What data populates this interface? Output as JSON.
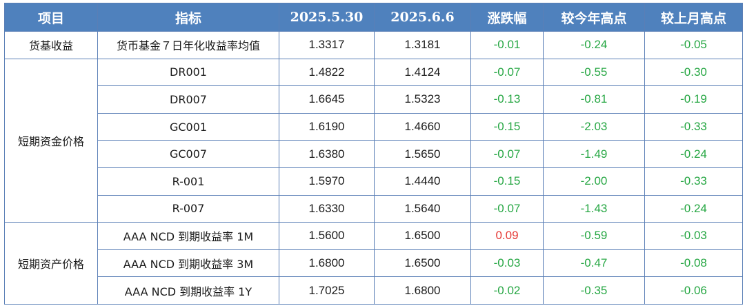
{
  "colors": {
    "header_bg": "#4f81bd",
    "header_text": "#ffffff",
    "border": "#5a7fb6",
    "up_color": "#e53935",
    "down_color": "#27a744"
  },
  "table": {
    "headers": [
      "项目",
      "指标",
      "2025.5.30",
      "2025.6.6",
      "涨跌幅",
      "较今年高点",
      "较上月高点"
    ],
    "groups": [
      {
        "category": "货基收益",
        "rows": [
          {
            "indicator": "货币基金７日年化收益率均值",
            "v1": "1.3317",
            "v2": "1.3181",
            "change": "-0.01",
            "vs_year_high": "-0.24",
            "vs_month_high": "-0.05"
          }
        ]
      },
      {
        "category": "短期资金价格",
        "rows": [
          {
            "indicator": "DR001",
            "v1": "1.4822",
            "v2": "1.4124",
            "change": "-0.07",
            "vs_year_high": "-0.55",
            "vs_month_high": "-0.30"
          },
          {
            "indicator": "DR007",
            "v1": "1.6645",
            "v2": "1.5323",
            "change": "-0.13",
            "vs_year_high": "-0.81",
            "vs_month_high": "-0.19"
          },
          {
            "indicator": "GC001",
            "v1": "1.6190",
            "v2": "1.4660",
            "change": "-0.15",
            "vs_year_high": "-2.03",
            "vs_month_high": "-0.33"
          },
          {
            "indicator": "GC007",
            "v1": "1.6380",
            "v2": "1.5650",
            "change": "-0.07",
            "vs_year_high": "-1.49",
            "vs_month_high": "-0.24"
          },
          {
            "indicator": "R-001",
            "v1": "1.5970",
            "v2": "1.4440",
            "change": "-0.15",
            "vs_year_high": "-2.00",
            "vs_month_high": "-0.33"
          },
          {
            "indicator": "R-007",
            "v1": "1.6330",
            "v2": "1.5640",
            "change": "-0.07",
            "vs_year_high": "-1.43",
            "vs_month_high": "-0.24"
          }
        ]
      },
      {
        "category": "短期资产价格",
        "rows": [
          {
            "indicator": "AAA NCD 到期收益率 1M",
            "v1": "1.5600",
            "v2": "1.6500",
            "change": "0.09",
            "vs_year_high": "-0.59",
            "vs_month_high": "-0.03"
          },
          {
            "indicator": "AAA NCD 到期收益率 3M",
            "v1": "1.6800",
            "v2": "1.6500",
            "change": "-0.03",
            "vs_year_high": "-0.47",
            "vs_month_high": "-0.08"
          },
          {
            "indicator": "AAA NCD 到期收益率 1Y",
            "v1": "1.7025",
            "v2": "1.6800",
            "change": "-0.02",
            "vs_year_high": "-0.35",
            "vs_month_high": "-0.06"
          }
        ]
      }
    ]
  }
}
